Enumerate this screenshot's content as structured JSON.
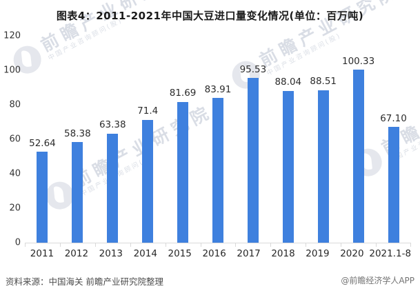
{
  "title": "图表4：2011-2021年中国大豆进口量变化情况(单位：百万吨)",
  "chart_data": {
    "type": "bar",
    "title": "图表4：2011-2021年中国大豆进口量变化情况",
    "unit_label": "单位：百万吨",
    "categories": [
      "2011",
      "2012",
      "2013",
      "2014",
      "2015",
      "2016",
      "2017",
      "2018",
      "2019",
      "2020",
      "2021.1-8"
    ],
    "values": [
      52.64,
      58.38,
      63.38,
      71.4,
      81.69,
      83.91,
      95.53,
      88.04,
      88.51,
      100.33,
      67.1
    ],
    "value_labels": [
      "52.64",
      "58.38",
      "63.38",
      "71.4",
      "81.69",
      "83.91",
      "95.53",
      "88.04",
      "88.51",
      "100.33",
      "67.10"
    ],
    "ylim": [
      0,
      120
    ],
    "yticks": [
      0,
      20,
      40,
      60,
      80,
      100,
      120
    ],
    "bar_color": "#3E80DE",
    "axis_color": "#d9d9d9",
    "grid": false,
    "legend": false
  },
  "footer": {
    "source": "资料来源：中国海关 前瞻产业研究院整理",
    "credit": "@前瞻经济学人APP"
  },
  "watermark": {
    "big_text": "前瞻产业研究院",
    "small_text": "中国产业咨询顾问(股)"
  }
}
